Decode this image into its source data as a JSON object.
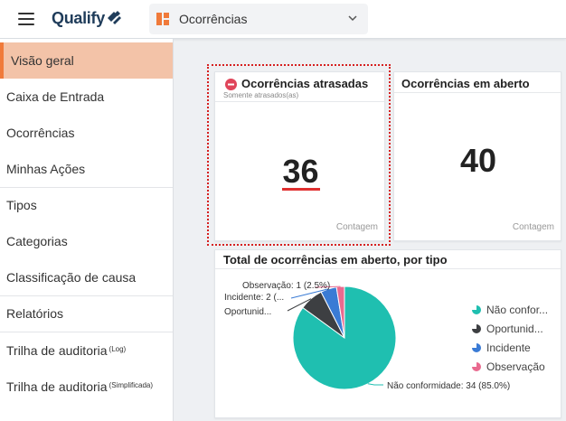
{
  "header": {
    "logo_text": "Qualify",
    "module_label": "Ocorrências",
    "module_icon": "module-grid-icon",
    "accent": "#f07a3a",
    "logo_color": "#1f3c5a"
  },
  "sidebar": {
    "items": [
      {
        "label": "Visão geral",
        "active": true
      },
      {
        "label": "Caixa de Entrada"
      },
      {
        "label": "Ocorrências"
      },
      {
        "label": "Minhas Ações"
      },
      {
        "label": "Tipos"
      },
      {
        "label": "Categorias"
      },
      {
        "label": "Classificação de causa"
      },
      {
        "label": "Relatórios"
      },
      {
        "label": "Trilha de auditoria",
        "suffix": "(Log)"
      },
      {
        "label": "Trilha de auditoria",
        "suffix": "(Simplificada)"
      }
    ]
  },
  "cards": {
    "late": {
      "title": "Ocorrências atrasadas",
      "subtitle": "Somente atrasados(as)",
      "value": "36",
      "footer": "Contagem",
      "icon": "no-entry-icon",
      "icon_color": "#e0455a"
    },
    "open": {
      "title": "Ocorrências em aberto",
      "value": "40",
      "footer": "Contagem"
    },
    "by_type": {
      "title": "Total de ocorrências em aberto, por tipo"
    }
  },
  "chart_data": {
    "type": "pie",
    "title": "Total de ocorrências em aberto, por tipo",
    "categories": [
      "Não conformidade",
      "Oportunidade",
      "Incidente",
      "Observação"
    ],
    "values": [
      34,
      3,
      2,
      1
    ],
    "percentages": [
      85.0,
      7.5,
      5.0,
      2.5
    ],
    "colors": [
      "#1fbfb0",
      "#3d3f42",
      "#3a7bd5",
      "#e96a8f"
    ],
    "slice_labels": [
      "Não conformidade: 34 (85.0%)",
      "Oportunid...",
      "Incidente: 2 (...",
      "Observação: 1 (2.5%)"
    ],
    "legend": [
      "Não confor...",
      "Oportunid...",
      "Incidente",
      "Observação"
    ],
    "legend_position": "right"
  }
}
